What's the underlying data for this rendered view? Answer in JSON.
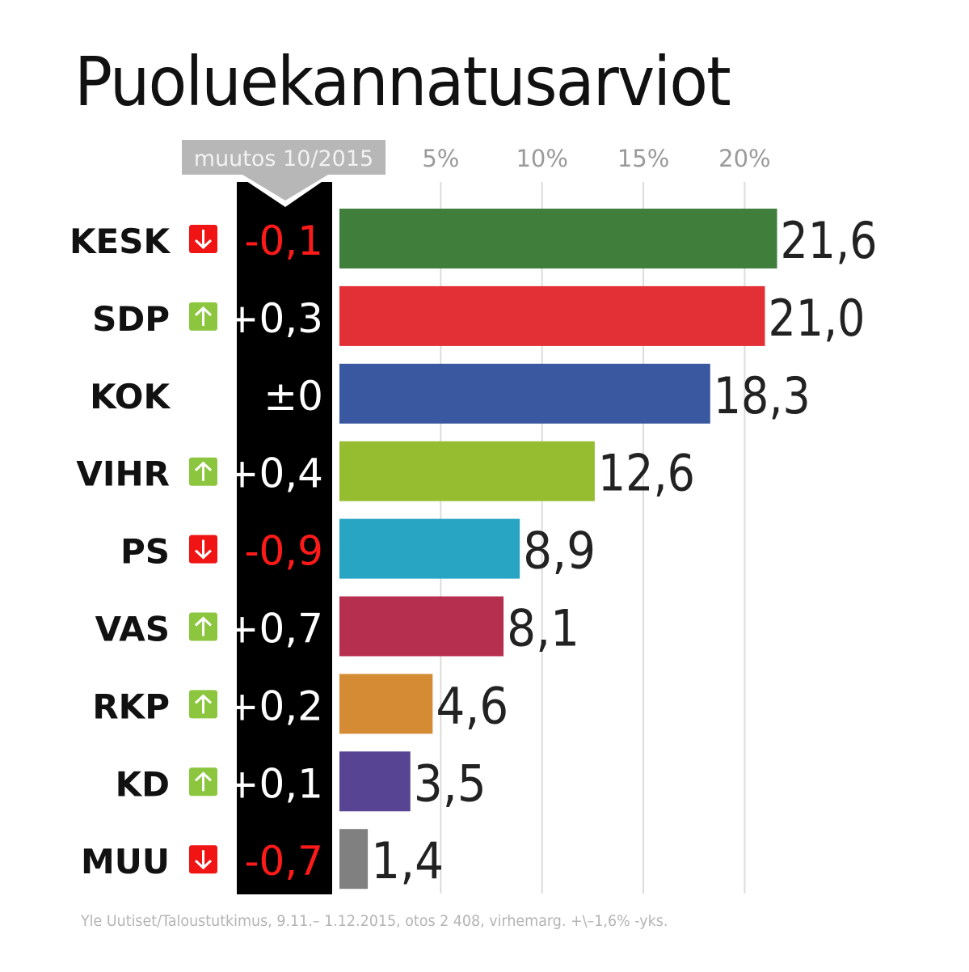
{
  "chart_data": {
    "type": "bar",
    "orientation": "horizontal",
    "title": "Puoluekannatusarviot",
    "categories": [
      "KESK",
      "SDP",
      "KOK",
      "VIHR",
      "PS",
      "VAS",
      "RKP",
      "KD",
      "MUU"
    ],
    "values": [
      21.6,
      21.0,
      18.3,
      12.6,
      8.9,
      8.1,
      4.6,
      3.5,
      1.4
    ],
    "value_labels": [
      "21,6",
      "21,0",
      "18,3",
      "12,6",
      "8,9",
      "8,1",
      "4,6",
      "3,5",
      "1,4"
    ],
    "colors": [
      "#3f7f3b",
      "#e32f36",
      "#3a58a0",
      "#95bd2f",
      "#27a5c3",
      "#b72f4f",
      "#d48b33",
      "#574593",
      "#808080"
    ],
    "change_header": "muutos 10/2015",
    "changes": [
      "-0,1",
      "+0,3",
      "±0",
      "+0,4",
      "-0,9",
      "+0,7",
      "+0,2",
      "+0,1",
      "-0,7"
    ],
    "change_direction": [
      "down",
      "up",
      "none",
      "up",
      "down",
      "up",
      "up",
      "up",
      "down"
    ],
    "x_ticks": [
      5,
      10,
      15,
      20
    ],
    "x_tick_labels": [
      "5%",
      "10%",
      "15%",
      "20%"
    ],
    "xlim": [
      0,
      25
    ],
    "grid": true,
    "up_color": "#8cc63f",
    "down_color": "#f01414"
  },
  "footer": "Yle Uutiset/Taloustutkimus, 9.11.– 1.12.2015, otos 2 408, virhemarg. +\\–1,6% -yks."
}
